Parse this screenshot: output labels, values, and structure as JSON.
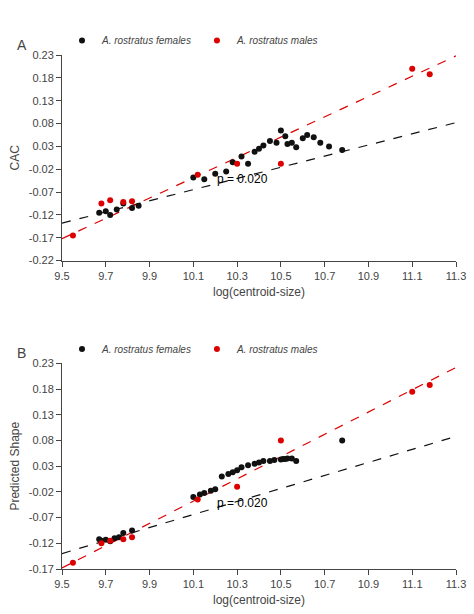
{
  "chart_data": [
    {
      "type": "scatter",
      "title": "A",
      "x_label": "log(centroid-size)",
      "y_label": "CAC",
      "xlim": [
        9.5,
        11.3
      ],
      "xticks": [
        9.5,
        9.7,
        9.9,
        10.1,
        10.3,
        10.5,
        10.7,
        10.9,
        11.1,
        11.3
      ],
      "ylim": [
        -0.22,
        0.23
      ],
      "yticks": [
        -0.22,
        -0.17,
        -0.12,
        -0.07,
        -0.02,
        0.03,
        0.08,
        0.13,
        0.18,
        0.23
      ],
      "grid": false,
      "legend": "top",
      "annotations": [
        {
          "text": "p = 0.020",
          "x": 10.2,
          "y": -0.06
        }
      ],
      "series": [
        {
          "type": "line",
          "color": "#111111",
          "line_style": "dashed",
          "x": [
            9.5,
            11.3
          ],
          "values": [
            -0.138,
            0.082
          ]
        },
        {
          "type": "line",
          "color": "#dd0000",
          "line_style": "dashed",
          "x": [
            9.5,
            11.3
          ],
          "values": [
            -0.172,
            0.228
          ]
        },
        {
          "name": "A. rostratus females",
          "type": "scatter",
          "marker": "circle",
          "color": "#111111",
          "x": [
            9.67,
            9.7,
            9.72,
            9.75,
            9.78,
            9.82,
            9.85,
            10.1,
            10.15,
            10.2,
            10.25,
            10.28,
            10.32,
            10.35,
            10.38,
            10.4,
            10.42,
            10.45,
            10.48,
            10.5,
            10.52,
            10.53,
            10.55,
            10.57,
            10.6,
            10.62,
            10.65,
            10.68,
            10.72,
            10.78
          ],
          "values": [
            -0.115,
            -0.112,
            -0.12,
            -0.108,
            -0.095,
            -0.105,
            -0.1,
            -0.038,
            -0.042,
            -0.03,
            -0.025,
            -0.005,
            0.008,
            -0.008,
            0.018,
            0.025,
            0.032,
            0.042,
            0.038,
            0.065,
            0.052,
            0.035,
            0.038,
            0.028,
            0.048,
            0.055,
            0.05,
            0.038,
            0.03,
            0.022
          ]
        },
        {
          "name": "A. rostratus males",
          "type": "scatter",
          "marker": "circle",
          "color": "#dd0000",
          "x": [
            9.55,
            9.68,
            9.72,
            9.78,
            9.82,
            10.12,
            10.3,
            10.5,
            11.1,
            11.18
          ],
          "values": [
            -0.165,
            -0.095,
            -0.088,
            -0.092,
            -0.09,
            -0.032,
            -0.008,
            -0.008,
            0.2,
            0.188
          ]
        }
      ]
    },
    {
      "type": "scatter",
      "title": "B",
      "x_label": "log(centroid-size)",
      "y_label": "Predicted Shape",
      "xlim": [
        9.5,
        11.3
      ],
      "xticks": [
        9.5,
        9.7,
        9.9,
        10.1,
        10.3,
        10.5,
        10.7,
        10.9,
        11.1,
        11.3
      ],
      "ylim": [
        -0.17,
        0.23
      ],
      "yticks": [
        -0.17,
        -0.12,
        -0.07,
        -0.02,
        0.03,
        0.08,
        0.13,
        0.18,
        0.23
      ],
      "grid": false,
      "legend": "top",
      "annotations": [
        {
          "text": "p = 0.020",
          "x": 10.2,
          "y": -0.06
        }
      ],
      "series": [
        {
          "type": "line",
          "color": "#111111",
          "line_style": "dashed",
          "x": [
            9.5,
            11.3
          ],
          "values": [
            -0.14,
            0.088
          ]
        },
        {
          "type": "line",
          "color": "#dd0000",
          "line_style": "dashed",
          "x": [
            9.5,
            11.3
          ],
          "values": [
            -0.168,
            0.222
          ]
        },
        {
          "name": "A. rostratus females",
          "type": "scatter",
          "marker": "circle",
          "color": "#111111",
          "x": [
            9.67,
            9.68,
            9.7,
            9.72,
            9.74,
            9.76,
            9.78,
            9.82,
            10.1,
            10.13,
            10.15,
            10.18,
            10.2,
            10.23,
            10.26,
            10.28,
            10.3,
            10.32,
            10.35,
            10.38,
            10.4,
            10.42,
            10.45,
            10.47,
            10.5,
            10.51,
            10.52,
            10.53,
            10.55,
            10.57,
            10.78
          ],
          "values": [
            -0.112,
            -0.115,
            -0.113,
            -0.116,
            -0.11,
            -0.108,
            -0.1,
            -0.095,
            -0.03,
            -0.025,
            -0.022,
            -0.018,
            -0.015,
            0.01,
            0.015,
            0.018,
            0.022,
            0.028,
            0.032,
            0.035,
            0.037,
            0.04,
            0.04,
            0.042,
            0.043,
            0.044,
            0.044,
            0.045,
            0.045,
            0.04,
            0.08
          ]
        },
        {
          "name": "A. rostratus males",
          "type": "scatter",
          "marker": "circle",
          "color": "#dd0000",
          "x": [
            9.55,
            9.68,
            9.72,
            9.78,
            9.82,
            10.12,
            10.3,
            10.5,
            11.1,
            11.18
          ],
          "values": [
            -0.158,
            -0.12,
            -0.115,
            -0.112,
            -0.108,
            -0.035,
            -0.01,
            0.08,
            0.175,
            0.188
          ]
        }
      ]
    }
  ]
}
